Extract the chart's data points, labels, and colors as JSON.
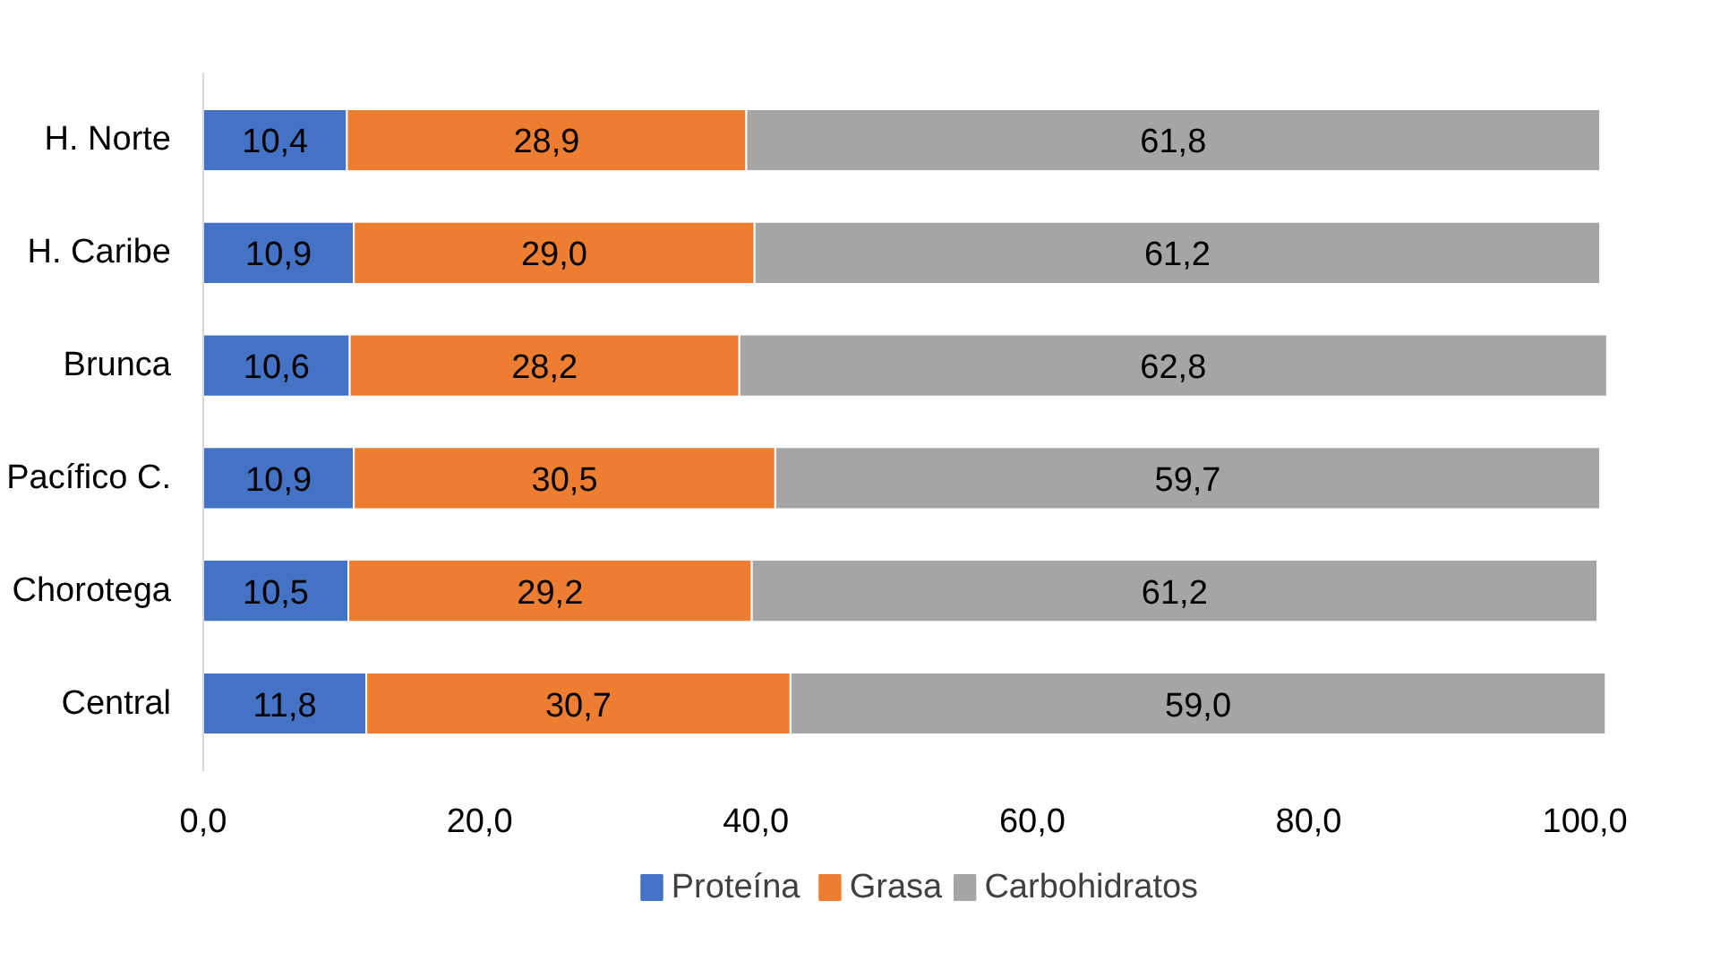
{
  "chart_data": {
    "type": "bar",
    "orientation": "horizontal",
    "stacked": true,
    "categories": [
      "H. Norte",
      "H. Caribe",
      "Brunca",
      "Pacífico C.",
      "Chorotega",
      "Central"
    ],
    "series": [
      {
        "name": "Proteína",
        "color": "#4472c4",
        "values": [
          10.4,
          10.9,
          10.6,
          10.9,
          10.5,
          11.8
        ],
        "value_labels": [
          "10,4",
          "10,9",
          "10,6",
          "10,9",
          "10,5",
          "11,8"
        ]
      },
      {
        "name": "Grasa",
        "color": "#ed7d31",
        "values": [
          28.9,
          29.0,
          28.2,
          30.5,
          29.2,
          30.7
        ],
        "value_labels": [
          "28,9",
          "29,0",
          "28,2",
          "30,5",
          "29,2",
          "30,7"
        ]
      },
      {
        "name": "Carbohidratos",
        "color": "#a5a5a5",
        "values": [
          61.8,
          61.2,
          62.8,
          59.7,
          61.2,
          59.0
        ],
        "value_labels": [
          "61,8",
          "61,2",
          "62,8",
          "59,7",
          "61,2",
          "59,0"
        ]
      }
    ],
    "xlim": [
      0,
      102
    ],
    "xticks": [
      {
        "value": 0,
        "label": "0,0"
      },
      {
        "value": 20,
        "label": "20,0"
      },
      {
        "value": 40,
        "label": "40,0"
      },
      {
        "value": 60,
        "label": "60,0"
      },
      {
        "value": 80,
        "label": "80,0"
      },
      {
        "value": 100,
        "label": "100,0"
      }
    ],
    "legend": "bottom",
    "grid": false
  }
}
